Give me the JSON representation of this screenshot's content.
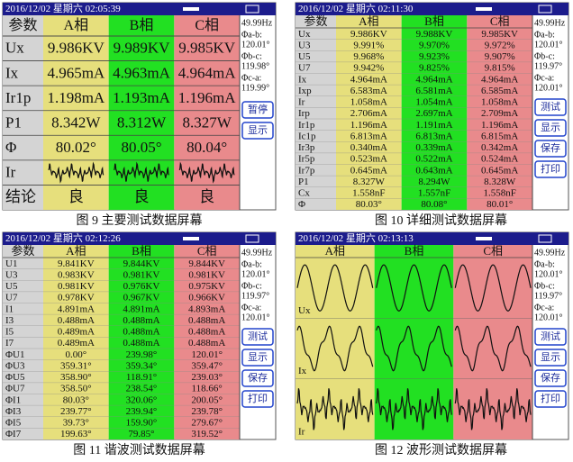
{
  "panels": [
    {
      "status": "2016/12/02 星期六 02:05:39",
      "header": [
        "参数",
        "A相",
        "B相",
        "C相"
      ],
      "rows": [
        {
          "label": "Ux",
          "cells": [
            "9.986KV",
            "9.989KV",
            "9.985KV"
          ]
        },
        {
          "label": "Ix",
          "cells": [
            "4.965mA",
            "4.963mA",
            "4.964mA"
          ]
        },
        {
          "label": "Ir1p",
          "cells": [
            "1.198mA",
            "1.193mA",
            "1.196mA"
          ]
        },
        {
          "label": "P1",
          "cells": [
            "8.342W",
            "8.312W",
            "8.327W"
          ]
        },
        {
          "label": "Φ",
          "cells": [
            "80.02°",
            "80.05°",
            "80.04°"
          ]
        },
        {
          "label": "Ir"
        },
        {
          "label": "结论",
          "cells": [
            "良",
            "良",
            "良"
          ]
        }
      ],
      "side": {
        "freq": "49.99Hz",
        "phases": [
          {
            "label": "Φa-b:",
            "value": "120.01°"
          },
          {
            "label": "Φb-c:",
            "value": "119.98°"
          },
          {
            "label": "Φc-a:",
            "value": "119.99°"
          }
        ],
        "buttons": [
          "暂停",
          "显示"
        ]
      },
      "caption": "图 9  主要测试数据屏幕"
    },
    {
      "status": "2016/12/02 星期六 02:11:30",
      "header": [
        "参数",
        "A相",
        "B相",
        "C相"
      ],
      "rows": [
        {
          "label": "Ux",
          "cells": [
            "9.986KV",
            "9.988KV",
            "9.985KV"
          ]
        },
        {
          "label": "U3",
          "cells": [
            "9.991%",
            "9.970%",
            "9.972%"
          ]
        },
        {
          "label": "U5",
          "cells": [
            "9.968%",
            "9.923%",
            "9.907%"
          ]
        },
        {
          "label": "U7",
          "cells": [
            "9.942%",
            "9.825%",
            "9.815%"
          ]
        },
        {
          "label": "Ix",
          "cells": [
            "4.964mA",
            "4.964mA",
            "4.964mA"
          ]
        },
        {
          "label": "Ixp",
          "cells": [
            "6.583mA",
            "6.581mA",
            "6.585mA"
          ]
        },
        {
          "label": "Ir",
          "cells": [
            "1.058mA",
            "1.054mA",
            "1.058mA"
          ]
        },
        {
          "label": "Irp",
          "cells": [
            "2.706mA",
            "2.697mA",
            "2.709mA"
          ]
        },
        {
          "label": "Ir1p",
          "cells": [
            "1.196mA",
            "1.191mA",
            "1.196mA"
          ]
        },
        {
          "label": "Ic1p",
          "cells": [
            "6.813mA",
            "6.813mA",
            "6.815mA"
          ]
        },
        {
          "label": "Ir3p",
          "cells": [
            "0.340mA",
            "0.339mA",
            "0.342mA"
          ]
        },
        {
          "label": "Ir5p",
          "cells": [
            "0.523mA",
            "0.522mA",
            "0.524mA"
          ]
        },
        {
          "label": "Ir7p",
          "cells": [
            "0.645mA",
            "0.643mA",
            "0.645mA"
          ]
        },
        {
          "label": "P1",
          "cells": [
            "8.327W",
            "8.294W",
            "8.328W"
          ]
        },
        {
          "label": "Cx",
          "cells": [
            "1.558nF",
            "1.557nF",
            "1.558nF"
          ]
        },
        {
          "label": "Φ",
          "cells": [
            "80.03°",
            "80.08°",
            "80.01°"
          ]
        }
      ],
      "side": {
        "freq": "49.99Hz",
        "phases": [
          {
            "label": "Φa-b:",
            "value": "120.01°"
          },
          {
            "label": "Φb-c:",
            "value": "119.97°"
          },
          {
            "label": "Φc-a:",
            "value": "120.01°"
          }
        ],
        "buttons": [
          "测试",
          "显示",
          "保存",
          "打印"
        ]
      },
      "caption": "图 10  详细测试数据屏幕"
    },
    {
      "status": "2016/12/02 星期六 02:12:26",
      "header": [
        "参数",
        "A相",
        "B相",
        "C相"
      ],
      "rows": [
        {
          "label": "U1",
          "cells": [
            "9.841KV",
            "9.844KV",
            "9.844KV"
          ]
        },
        {
          "label": "U3",
          "cells": [
            "0.983KV",
            "0.981KV",
            "0.981KV"
          ]
        },
        {
          "label": "U5",
          "cells": [
            "0.981KV",
            "0.976KV",
            "0.975KV"
          ]
        },
        {
          "label": "U7",
          "cells": [
            "0.978KV",
            "0.967KV",
            "0.966KV"
          ]
        },
        {
          "label": "I1",
          "cells": [
            "4.891mA",
            "4.891mA",
            "4.893mA"
          ]
        },
        {
          "label": "I3",
          "cells": [
            "0.488mA",
            "0.488mA",
            "0.488mA"
          ]
        },
        {
          "label": "I5",
          "cells": [
            "0.489mA",
            "0.488mA",
            "0.488mA"
          ]
        },
        {
          "label": "I7",
          "cells": [
            "0.489mA",
            "0.488mA",
            "0.488mA"
          ]
        },
        {
          "label": "ΦU1",
          "cells": [
            "0.00°",
            "239.98°",
            "120.01°"
          ]
        },
        {
          "label": "ΦU3",
          "cells": [
            "359.31°",
            "359.34°",
            "359.47°"
          ]
        },
        {
          "label": "ΦU5",
          "cells": [
            "358.90°",
            "118.91°",
            "239.03°"
          ]
        },
        {
          "label": "ΦU7",
          "cells": [
            "358.50°",
            "238.54°",
            "118.66°"
          ]
        },
        {
          "label": "ΦI1",
          "cells": [
            "80.03°",
            "320.06°",
            "200.05°"
          ]
        },
        {
          "label": "ΦI3",
          "cells": [
            "239.77°",
            "239.94°",
            "239.78°"
          ]
        },
        {
          "label": "ΦI5",
          "cells": [
            "39.73°",
            "159.90°",
            "279.67°"
          ]
        },
        {
          "label": "ΦI7",
          "cells": [
            "199.63°",
            "79.85°",
            "319.52°"
          ]
        }
      ],
      "side": {
        "freq": "49.99Hz",
        "phases": [
          {
            "label": "Φa-b:",
            "value": "120.01°"
          },
          {
            "label": "Φb-c:",
            "value": "119.97°"
          },
          {
            "label": "Φc-a:",
            "value": "120.01°"
          }
        ],
        "buttons": [
          "测试",
          "显示",
          "保存",
          "打印"
        ]
      },
      "caption": "图 11  谐波测试数据屏幕"
    },
    {
      "status": "2016/12/02 星期六 02:13:13",
      "header": [
        "A相",
        "B相",
        "C相"
      ],
      "wave_labels": [
        "Ux",
        "Ix",
        "Ir"
      ],
      "side": {
        "freq": "49.99Hz",
        "phases": [
          {
            "label": "Φa-b:",
            "value": "120.01°"
          },
          {
            "label": "Φb-c:",
            "value": "119.97°"
          },
          {
            "label": "Φc-a:",
            "value": "120.01°"
          }
        ],
        "buttons": [
          "测试",
          "显示",
          "保存",
          "打印"
        ]
      },
      "caption": "图 12  波形测试数据屏幕"
    }
  ]
}
